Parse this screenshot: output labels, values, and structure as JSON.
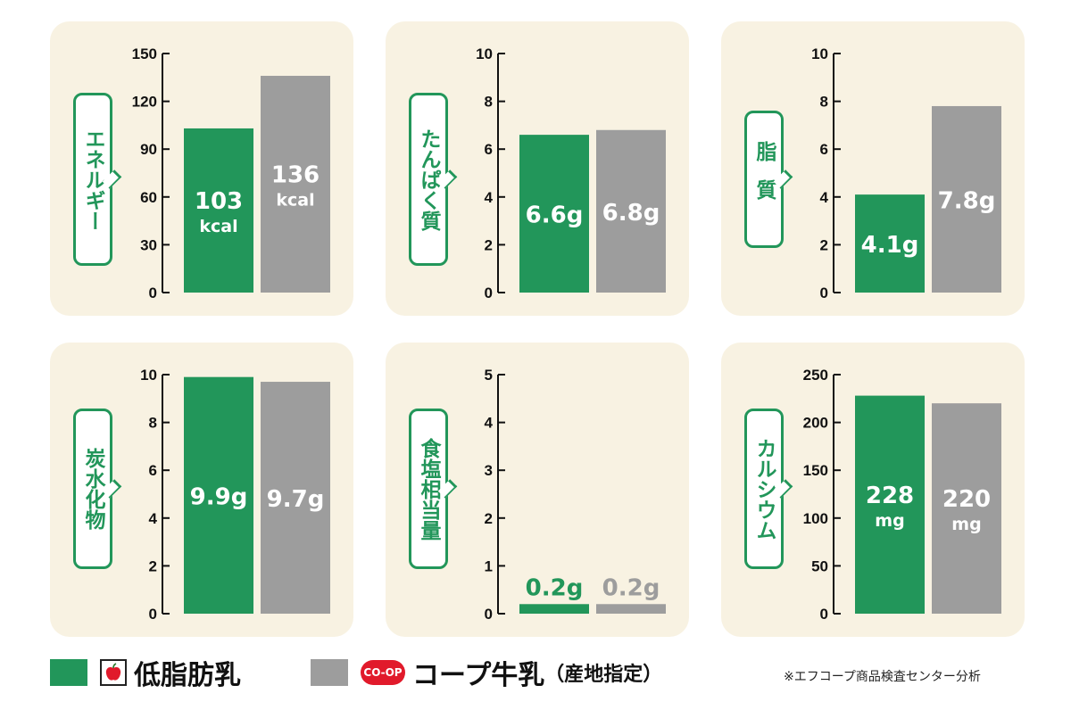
{
  "colors": {
    "low_fat": "#22965a",
    "coop": "#9d9d9d",
    "label_green": "#22965a",
    "panel_bg": "#f8f2e2"
  },
  "legend": {
    "low_fat_label": "低脂肪乳",
    "coop_logo_text": "CO-OP",
    "coop_label": "コープ牛乳",
    "coop_sub": "（産地指定）"
  },
  "source": "※エフコープ商品検査センター分析",
  "chart_data": [
    {
      "type": "bar",
      "title": "エネルギー",
      "ylim": [
        0,
        150
      ],
      "yticks": [
        0,
        30,
        60,
        90,
        120,
        150
      ],
      "series": [
        {
          "name": "低脂肪乳",
          "values": [
            103
          ],
          "labels": [
            "103",
            "kcal"
          ]
        },
        {
          "name": "コープ牛乳（産地指定）",
          "values": [
            136
          ],
          "labels": [
            "136",
            "kcal"
          ]
        }
      ]
    },
    {
      "type": "bar",
      "title": "たんぱく質",
      "ylim": [
        0,
        10
      ],
      "yticks": [
        0,
        2,
        4,
        6,
        8,
        10
      ],
      "series": [
        {
          "name": "低脂肪乳",
          "values": [
            6.6
          ],
          "labels": [
            "6.6g"
          ]
        },
        {
          "name": "コープ牛乳（産地指定）",
          "values": [
            6.8
          ],
          "labels": [
            "6.8g"
          ]
        }
      ]
    },
    {
      "type": "bar",
      "title": "脂質",
      "ylim": [
        0,
        10
      ],
      "yticks": [
        0,
        2,
        4,
        6,
        8,
        10
      ],
      "series": [
        {
          "name": "低脂肪乳",
          "values": [
            4.1
          ],
          "labels": [
            "4.1g"
          ]
        },
        {
          "name": "コープ牛乳（産地指定）",
          "values": [
            7.8
          ],
          "labels": [
            "7.8g"
          ]
        }
      ]
    },
    {
      "type": "bar",
      "title": "炭水化物",
      "ylim": [
        0,
        10
      ],
      "yticks": [
        0,
        2,
        4,
        6,
        8,
        10
      ],
      "series": [
        {
          "name": "低脂肪乳",
          "values": [
            9.9
          ],
          "labels": [
            "9.9g"
          ]
        },
        {
          "name": "コープ牛乳（産地指定）",
          "values": [
            9.7
          ],
          "labels": [
            "9.7g"
          ]
        }
      ]
    },
    {
      "type": "bar",
      "title": "食塩相当量",
      "ylim": [
        0,
        5
      ],
      "yticks": [
        0,
        1,
        2,
        3,
        4,
        5
      ],
      "series": [
        {
          "name": "低脂肪乳",
          "values": [
            0.2
          ],
          "labels": [
            "0.2g"
          ]
        },
        {
          "name": "コープ牛乳（産地指定）",
          "values": [
            0.2
          ],
          "labels": [
            "0.2g"
          ]
        }
      ]
    },
    {
      "type": "bar",
      "title": "カルシウム",
      "ylim": [
        0,
        250
      ],
      "yticks": [
        0,
        50,
        100,
        150,
        200,
        250
      ],
      "series": [
        {
          "name": "低脂肪乳",
          "values": [
            228
          ],
          "labels": [
            "228",
            "mg"
          ]
        },
        {
          "name": "コープ牛乳（産地指定）",
          "values": [
            220
          ],
          "labels": [
            "220",
            "mg"
          ]
        }
      ]
    }
  ]
}
